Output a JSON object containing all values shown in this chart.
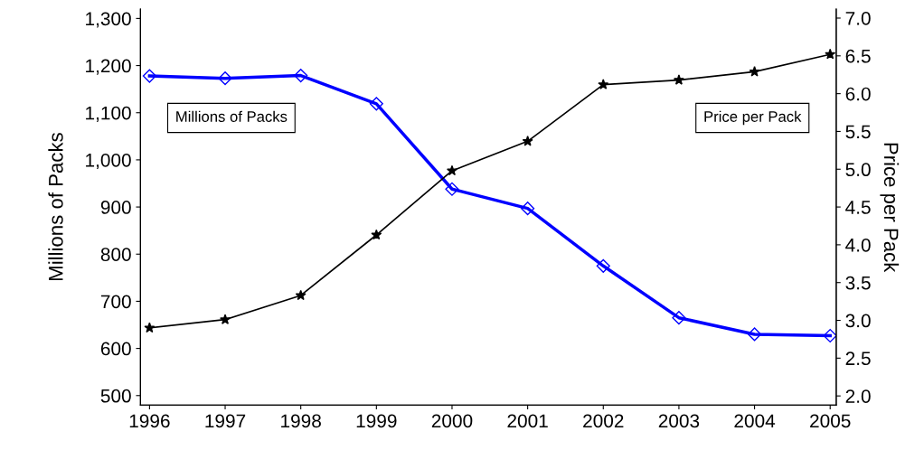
{
  "chart_data": {
    "type": "line",
    "xlabel": null,
    "ylabel": "Millions of Packs",
    "y2label": "Price per Pack",
    "x": [
      1996,
      1997,
      1998,
      1999,
      2000,
      2001,
      2002,
      2003,
      2004,
      2005
    ],
    "xlim": [
      1995.88,
      2005.08
    ],
    "xticks": [
      1996,
      1997,
      1998,
      1999,
      2000,
      2001,
      2002,
      2003,
      2004,
      2005
    ],
    "ylim": [
      480,
      1320
    ],
    "yticks": [
      {
        "value": 500,
        "label": "500"
      },
      {
        "value": 600,
        "label": "600"
      },
      {
        "value": 700,
        "label": "700"
      },
      {
        "value": 800,
        "label": "800"
      },
      {
        "value": 900,
        "label": "900"
      },
      {
        "value": 1000,
        "label": "1,000"
      },
      {
        "value": 1100,
        "label": "1,100"
      },
      {
        "value": 1200,
        "label": "1,200"
      },
      {
        "value": 1300,
        "label": "1,300"
      }
    ],
    "y2lim": [
      1.88,
      7.12
    ],
    "y2ticks": [
      {
        "value": 2,
        "label": "2.0"
      },
      {
        "value": 2.5,
        "label": "2.5"
      },
      {
        "value": 3,
        "label": "3.0"
      },
      {
        "value": 3.5,
        "label": "3.5"
      },
      {
        "value": 4,
        "label": "4.0"
      },
      {
        "value": 4.5,
        "label": "4.5"
      },
      {
        "value": 5,
        "label": "5.0"
      },
      {
        "value": 5.5,
        "label": "5.5"
      },
      {
        "value": 6,
        "label": "6.0"
      },
      {
        "value": 6.5,
        "label": "6.5"
      },
      {
        "value": 7,
        "label": "7.0"
      }
    ],
    "grid": false,
    "legend": false,
    "series": [
      {
        "color": "#0000ff",
        "marker": "diamond",
        "values": [
          1178,
          1173,
          1179,
          1119,
          938,
          897,
          775,
          665,
          630,
          627
        ]
      },
      {
        "color": "#000000",
        "marker": "star",
        "axis": "y2",
        "values": [
          2.9,
          3.01,
          3.33,
          4.13,
          4.98,
          5.37,
          6.12,
          6.18,
          6.29,
          6.52
        ]
      }
    ],
    "annotations": [
      "Millions of Packs",
      "Price per Pack"
    ]
  }
}
